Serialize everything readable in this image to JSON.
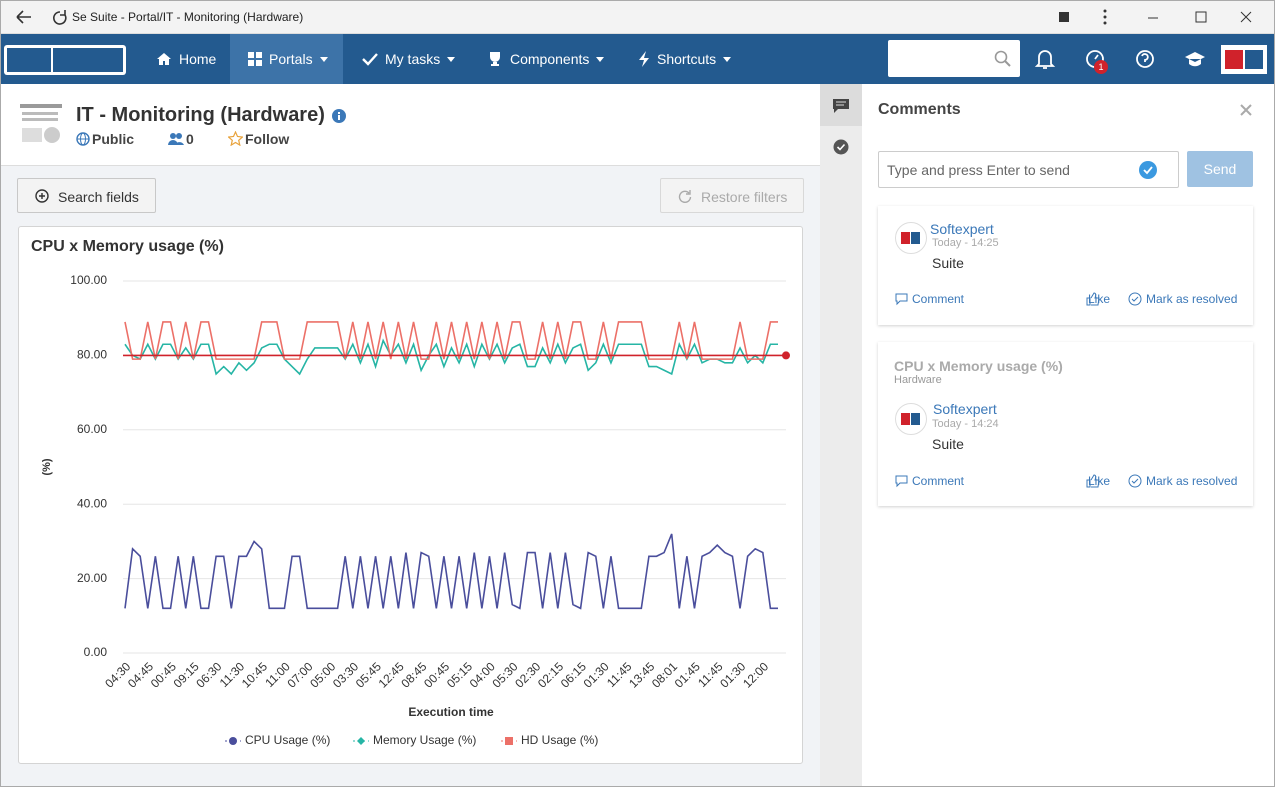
{
  "window": {
    "title": "Se Suite - Portal/IT - Monitoring (Hardware)"
  },
  "nav": {
    "items": [
      "Home",
      "Portals",
      "My tasks",
      "Components",
      "Shortcuts"
    ],
    "badge": 1
  },
  "page": {
    "title": "IT - Monitoring (Hardware)",
    "visibility": "Public",
    "members": 0,
    "follow": "Follow"
  },
  "buttons": {
    "search": "Search fields",
    "restore": "Restore filters"
  },
  "chart_data": {
    "type": "line",
    "title": "CPU x Memory usage (%)",
    "x_label": "Execution time",
    "y_label": "(%)",
    "categories": [
      "04:30",
      null,
      null,
      "04:45",
      null,
      null,
      "00:45",
      null,
      null,
      "09:15",
      null,
      null,
      "06:30",
      null,
      null,
      "11:30",
      null,
      null,
      "10:45",
      null,
      null,
      "11:00",
      null,
      null,
      "07:00",
      null,
      null,
      "05:00",
      null,
      null,
      "03:30",
      null,
      null,
      "05:45",
      null,
      null,
      "12:45",
      null,
      null,
      "08:45",
      null,
      null,
      "00:45",
      null,
      null,
      "05:15",
      null,
      null,
      "04:00",
      null,
      null,
      "05:30",
      null,
      null,
      "02:30",
      null,
      null,
      "02:15",
      null,
      null,
      "06:15",
      null,
      null,
      "01:30",
      null,
      null,
      "11:45",
      null,
      null,
      "13:45",
      null,
      null,
      "08:01",
      null,
      null,
      "01:45",
      null,
      null,
      "11:45",
      null,
      null,
      "01:30",
      null,
      null,
      "12:00",
      null,
      null
    ],
    "series": [
      {
        "name": "CPU Usage (%)",
        "color": "#4a4e9c",
        "marker": "circle",
        "values": [
          12,
          28,
          26,
          12,
          26,
          12,
          12,
          26,
          12,
          26,
          12,
          12,
          26,
          26,
          12,
          26,
          26,
          30,
          28,
          12,
          12,
          12,
          26,
          26,
          12,
          12,
          12,
          12,
          12,
          26,
          12,
          26,
          12,
          26,
          12,
          26,
          12,
          27,
          12,
          27,
          26,
          12,
          26,
          12,
          26,
          12,
          27,
          12,
          26,
          12,
          27,
          13,
          12,
          27,
          27,
          12,
          27,
          12,
          27,
          13,
          12,
          27,
          26,
          12,
          26,
          12,
          12,
          12,
          12,
          26,
          26,
          27,
          32,
          12,
          26,
          12,
          26,
          27,
          29,
          27,
          26,
          12,
          26,
          28,
          27,
          12,
          12
        ]
      },
      {
        "name": "Memory Usage (%)",
        "color": "#26b5a5",
        "marker": "diamond",
        "values": [
          83,
          80,
          79,
          83,
          79,
          83,
          83,
          79,
          82,
          79,
          83,
          83,
          75,
          77,
          75,
          78,
          76,
          78,
          82,
          83,
          83,
          79,
          77,
          75,
          79,
          82,
          82,
          82,
          82,
          79,
          83,
          78,
          83,
          77,
          84,
          80,
          83,
          78,
          83,
          76,
          80,
          83,
          77,
          82,
          78,
          83,
          77,
          83,
          79,
          83,
          78,
          82,
          83,
          77,
          77,
          82,
          78,
          83,
          78,
          82,
          83,
          76,
          78,
          83,
          78,
          83,
          83,
          83,
          83,
          77,
          77,
          76,
          75,
          83,
          79,
          83,
          78,
          79,
          79,
          78,
          78,
          82,
          78,
          80,
          78,
          83,
          83
        ]
      },
      {
        "name": "HD Usage (%)",
        "color": "#ec7068",
        "marker": "square",
        "values": [
          89,
          79,
          79,
          89,
          79,
          89,
          89,
          79,
          89,
          79,
          89,
          89,
          79,
          79,
          79,
          79,
          79,
          79,
          89,
          89,
          89,
          79,
          79,
          79,
          89,
          89,
          89,
          89,
          89,
          79,
          89,
          79,
          89,
          79,
          89,
          79,
          89,
          79,
          89,
          79,
          79,
          89,
          79,
          89,
          79,
          89,
          79,
          89,
          79,
          89,
          79,
          89,
          89,
          79,
          79,
          89,
          79,
          89,
          79,
          89,
          89,
          79,
          79,
          89,
          79,
          89,
          89,
          89,
          89,
          79,
          79,
          79,
          79,
          89,
          79,
          89,
          79,
          79,
          79,
          79,
          79,
          89,
          79,
          79,
          79,
          89,
          89
        ]
      }
    ],
    "reference_line": {
      "value": 80,
      "color": "#d0222b"
    },
    "ylim": [
      0,
      100
    ],
    "yticks": [
      {
        "value": 0,
        "label": "0.00"
      },
      {
        "value": 20,
        "label": "20.00"
      },
      {
        "value": 40,
        "label": "40.00"
      },
      {
        "value": 60,
        "label": "60.00"
      },
      {
        "value": 80,
        "label": "80.00"
      },
      {
        "value": 100,
        "label": "100.00"
      }
    ],
    "grid": true,
    "legend": "bottom"
  },
  "comments": {
    "title": "Comments",
    "placeholder": "Type and press Enter to send",
    "send": "Send",
    "items": [
      {
        "author": "Softexpert",
        "time": "Today - 14:25",
        "text": "Suite",
        "comment": "Comment",
        "like": "Like",
        "resolve": "Mark as resolved"
      },
      {
        "context": "CPU x Memory usage (%)",
        "context_sub": "Hardware",
        "author": "Softexpert",
        "time": "Today - 14:24",
        "text": "Suite",
        "comment": "Comment",
        "like": "Like",
        "resolve": "Mark as resolved"
      }
    ]
  }
}
